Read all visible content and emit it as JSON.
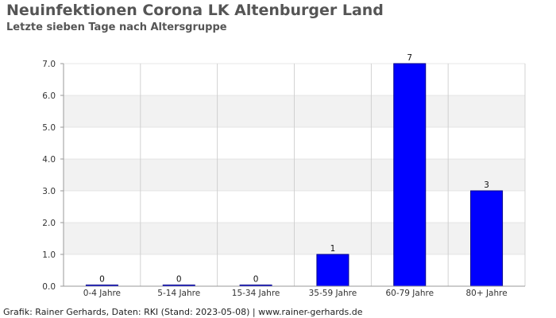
{
  "chart_data": {
    "type": "bar",
    "title": "Neuinfektionen Corona LK Altenburger Land",
    "subtitle": "Letzte sieben Tage nach Altersgruppe",
    "categories": [
      "0-4 Jahre",
      "5-14 Jahre",
      "15-34 Jahre",
      "35-59 Jahre",
      "60-79 Jahre",
      "80+ Jahre"
    ],
    "values": [
      0,
      0,
      0,
      1,
      7,
      3
    ],
    "value_labels": [
      "0",
      "0",
      "0",
      "1",
      "7",
      "3"
    ],
    "yticks": [
      "0.0",
      "1.0",
      "2.0",
      "3.0",
      "4.0",
      "5.0",
      "6.0",
      "7.0"
    ],
    "ylim": [
      0,
      7
    ],
    "xlabel": "",
    "ylabel": "",
    "grid": true,
    "colors": {
      "bar": "#0000ff",
      "bar_stroke": "#00008b",
      "band": "#f2f2f2",
      "gridline": "#d0d0d0",
      "text": "#333333"
    }
  },
  "footer": {
    "credit": "Grafik: Rainer Gerhards, Daten: RKI (Stand: 2023-05-08) | www.rainer-gerhards.de"
  }
}
